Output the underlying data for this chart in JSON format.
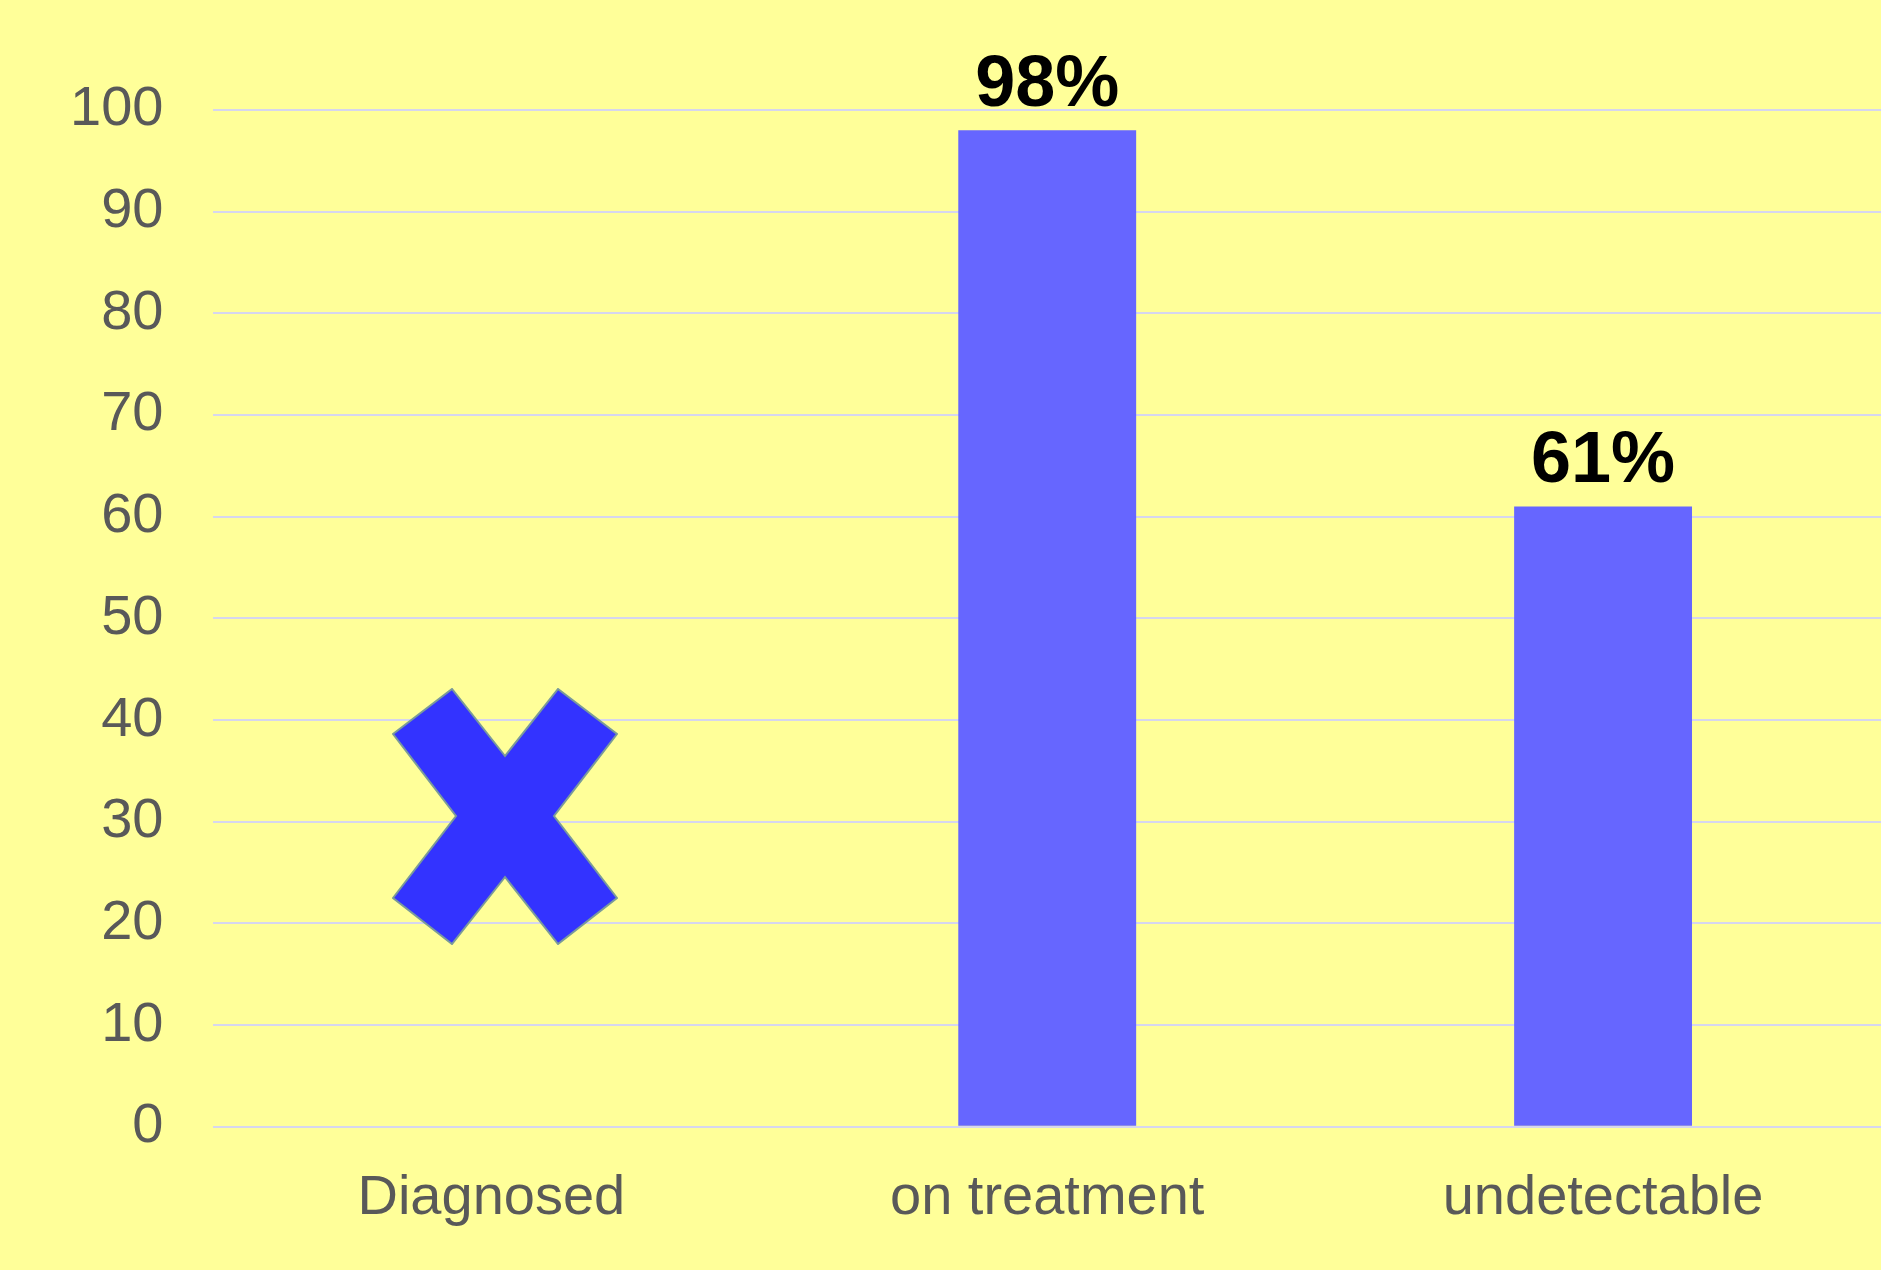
{
  "chart_data": {
    "type": "bar",
    "categories": [
      "Diagnosed",
      "on treatment",
      "undetectable"
    ],
    "values": [
      null,
      98,
      61
    ],
    "value_labels": [
      null,
      "98%",
      "61%"
    ],
    "color": "#6666ff",
    "ylim": [
      0,
      100
    ],
    "yticks": [
      0,
      10,
      20,
      30,
      40,
      50,
      60,
      70,
      80,
      90,
      100
    ],
    "grid": "y"
  }
}
